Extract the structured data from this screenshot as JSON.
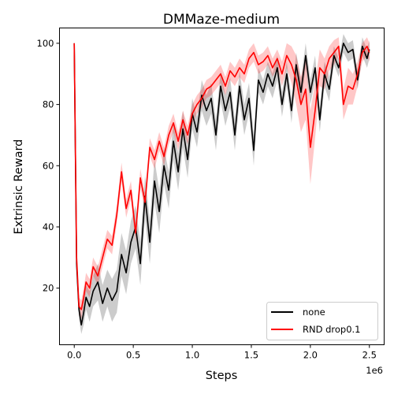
{
  "chart_data": {
    "type": "line",
    "title": "DMMaze-medium",
    "xlabel": "Steps",
    "ylabel": "Extrinsic Reward",
    "x_offset_label": "1e6",
    "xlim": [
      -0.125,
      2.625
    ],
    "ylim": [
      1.5,
      105
    ],
    "xticks": [
      0.0,
      0.5,
      1.0,
      1.5,
      2.0,
      2.5
    ],
    "xtick_labels": [
      "0.0",
      "0.5",
      "1.0",
      "1.5",
      "2.0",
      "2.5"
    ],
    "yticks": [
      20,
      40,
      60,
      80,
      100
    ],
    "ytick_labels": [
      "20",
      "40",
      "60",
      "80",
      "100"
    ],
    "grid": false,
    "legend_position": "lower-right",
    "series": [
      {
        "name": "none",
        "color": "#000000",
        "band_color": "#808080",
        "x": [
          0.0,
          0.02,
          0.04,
          0.06,
          0.08,
          0.1,
          0.13,
          0.16,
          0.2,
          0.24,
          0.28,
          0.32,
          0.36,
          0.4,
          0.44,
          0.48,
          0.52,
          0.56,
          0.6,
          0.64,
          0.68,
          0.72,
          0.76,
          0.8,
          0.84,
          0.88,
          0.92,
          0.96,
          1.0,
          1.04,
          1.08,
          1.12,
          1.16,
          1.2,
          1.24,
          1.28,
          1.32,
          1.36,
          1.4,
          1.44,
          1.48,
          1.52,
          1.56,
          1.6,
          1.64,
          1.68,
          1.72,
          1.76,
          1.8,
          1.84,
          1.88,
          1.92,
          1.96,
          2.0,
          2.04,
          2.08,
          2.12,
          2.16,
          2.2,
          2.24,
          2.28,
          2.32,
          2.36,
          2.4,
          2.44,
          2.48,
          2.5
        ],
        "y": [
          100,
          28,
          13,
          8,
          12,
          17,
          14,
          19,
          22,
          15,
          20,
          16,
          19,
          31,
          25,
          35,
          40,
          28,
          50,
          35,
          55,
          45,
          60,
          52,
          68,
          58,
          72,
          62,
          77,
          71,
          83,
          78,
          82,
          70,
          86,
          78,
          84,
          70,
          86,
          75,
          82,
          65,
          88,
          84,
          90,
          86,
          92,
          80,
          90,
          78,
          93,
          84,
          96,
          84,
          92,
          75,
          90,
          85,
          96,
          92,
          100,
          97,
          98,
          88,
          99,
          95,
          98
        ],
        "band_half_width": [
          1,
          3,
          3,
          3,
          4,
          4,
          5,
          5,
          6,
          6,
          6,
          7,
          7,
          7,
          7,
          7,
          7,
          7,
          7,
          7,
          7,
          7,
          6,
          6,
          6,
          6,
          6,
          6,
          5,
          5,
          5,
          5,
          5,
          5,
          5,
          5,
          5,
          5,
          5,
          5,
          5,
          5,
          4,
          4,
          4,
          4,
          4,
          4,
          4,
          4,
          4,
          4,
          4,
          4,
          4,
          4,
          4,
          4,
          3,
          3,
          3,
          3,
          3,
          3,
          3,
          3,
          3
        ]
      },
      {
        "name": "RND drop0.1",
        "color": "#ff0000",
        "band_color": "#ff0000",
        "x": [
          0.0,
          0.02,
          0.04,
          0.06,
          0.08,
          0.1,
          0.13,
          0.16,
          0.2,
          0.24,
          0.28,
          0.32,
          0.36,
          0.4,
          0.44,
          0.48,
          0.52,
          0.56,
          0.6,
          0.64,
          0.68,
          0.72,
          0.76,
          0.8,
          0.84,
          0.88,
          0.92,
          0.96,
          1.0,
          1.04,
          1.08,
          1.12,
          1.16,
          1.2,
          1.24,
          1.28,
          1.32,
          1.36,
          1.4,
          1.44,
          1.48,
          1.52,
          1.56,
          1.6,
          1.64,
          1.68,
          1.72,
          1.76,
          1.8,
          1.84,
          1.88,
          1.92,
          1.96,
          2.0,
          2.04,
          2.08,
          2.12,
          2.16,
          2.2,
          2.24,
          2.28,
          2.32,
          2.36,
          2.4,
          2.44,
          2.48,
          2.5
        ],
        "y": [
          100,
          30,
          14,
          13,
          17,
          22,
          20,
          27,
          24,
          30,
          36,
          34,
          44,
          58,
          46,
          52,
          38,
          56,
          48,
          66,
          62,
          68,
          63,
          70,
          74,
          68,
          75,
          70,
          77,
          80,
          82,
          85,
          86,
          88,
          90,
          86,
          91,
          89,
          92,
          90,
          95,
          97,
          93,
          94,
          96,
          92,
          95,
          90,
          96,
          93,
          88,
          80,
          85,
          66,
          78,
          92,
          90,
          95,
          97,
          99,
          80,
          86,
          85,
          90,
          97,
          99,
          97
        ],
        "band_half_width": [
          1,
          3,
          3,
          3,
          3,
          3,
          3,
          3,
          3,
          3,
          3,
          3,
          3,
          3,
          3,
          3,
          3,
          3,
          3,
          3,
          3,
          3,
          3,
          3,
          3,
          3,
          3,
          3,
          3,
          3,
          3,
          3,
          3,
          3,
          3,
          3,
          3,
          3,
          3,
          3,
          3,
          3,
          3,
          3,
          3,
          3,
          3,
          4,
          4,
          6,
          8,
          9,
          10,
          12,
          9,
          6,
          5,
          4,
          4,
          3,
          5,
          6,
          5,
          4,
          3,
          3,
          3
        ]
      }
    ]
  }
}
